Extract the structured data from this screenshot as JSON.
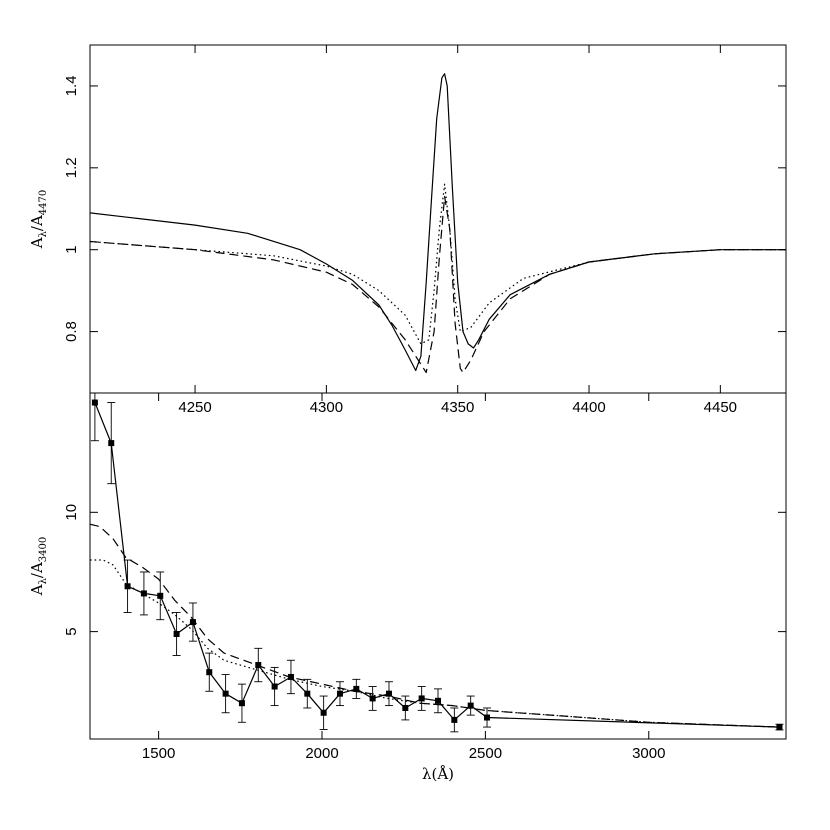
{
  "chart_data": [
    {
      "type": "line",
      "panel": "top",
      "ylabel_main": "A",
      "ylabel_sub1": "λ",
      "ylabel_slash": "/A",
      "ylabel_sub2": "4470",
      "xlim": [
        4210,
        4475
      ],
      "ylim": [
        0.65,
        1.5
      ],
      "grid": false,
      "legend": "none",
      "x_ticks": [
        "4250",
        "4300",
        "4350",
        "4400",
        "4450"
      ],
      "x_tick_values": [
        4250,
        4300,
        4350,
        4400,
        4450
      ],
      "y_ticks": [
        "0.8",
        "1",
        "1.2",
        "1.4"
      ],
      "y_tick_values": [
        0.8,
        1.0,
        1.2,
        1.4
      ],
      "series": [
        {
          "style": "solid",
          "x": [
            4210,
            4230,
            4250,
            4270,
            4290,
            4300,
            4310,
            4320,
            4325,
            4330,
            4334,
            4336,
            4338,
            4340,
            4342,
            4344,
            4345,
            4346,
            4348,
            4350,
            4352,
            4354,
            4356,
            4358,
            4362,
            4370,
            4385,
            4400,
            4425,
            4450,
            4475
          ],
          "y": [
            1.09,
            1.075,
            1.06,
            1.04,
            1.0,
            0.965,
            0.925,
            0.865,
            0.815,
            0.755,
            0.705,
            0.74,
            0.92,
            1.12,
            1.32,
            1.42,
            1.43,
            1.4,
            1.15,
            0.92,
            0.8,
            0.77,
            0.76,
            0.78,
            0.83,
            0.89,
            0.94,
            0.97,
            0.99,
            1.0,
            1.0
          ]
        },
        {
          "style": "dashed",
          "x": [
            4210,
            4250,
            4280,
            4300,
            4310,
            4320,
            4330,
            4334,
            4338,
            4341,
            4343,
            4345,
            4347,
            4349,
            4351,
            4352,
            4355,
            4360,
            4370,
            4385,
            4400,
            4425,
            4450,
            4475
          ],
          "y": [
            1.02,
            1.0,
            0.975,
            0.945,
            0.915,
            0.86,
            0.78,
            0.74,
            0.7,
            0.8,
            0.98,
            1.13,
            1.05,
            0.82,
            0.71,
            0.7,
            0.73,
            0.8,
            0.88,
            0.94,
            0.97,
            0.99,
            1.0,
            1.0
          ]
        },
        {
          "style": "dotted",
          "x": [
            4210,
            4250,
            4280,
            4300,
            4310,
            4320,
            4330,
            4336,
            4339,
            4341,
            4343,
            4345,
            4347,
            4349,
            4351,
            4355,
            4362,
            4375,
            4400,
            4425,
            4450,
            4475
          ],
          "y": [
            1.02,
            1.0,
            0.985,
            0.96,
            0.94,
            0.9,
            0.84,
            0.77,
            0.78,
            0.9,
            1.05,
            1.16,
            1.05,
            0.88,
            0.8,
            0.81,
            0.87,
            0.93,
            0.97,
            0.99,
            1.0,
            1.0
          ]
        }
      ]
    },
    {
      "type": "line",
      "panel": "bottom",
      "ylabel_main": "A",
      "ylabel_sub1": "λ",
      "ylabel_slash": "/A",
      "ylabel_sub2": "3400",
      "xlabel": "λ(Å)",
      "xlim": [
        1290,
        3420
      ],
      "ylim": [
        0.5,
        15.0
      ],
      "grid": false,
      "legend": "none",
      "x_ticks": [
        "1500",
        "2000",
        "2500",
        "3000"
      ],
      "x_tick_values": [
        1500,
        2000,
        2500,
        3000
      ],
      "y_ticks": [
        "5",
        "10"
      ],
      "y_tick_values": [
        5,
        10
      ],
      "series": [
        {
          "style": "solid-markers",
          "x": [
            1305,
            1355,
            1405,
            1455,
            1505,
            1555,
            1605,
            1655,
            1705,
            1755,
            1805,
            1855,
            1905,
            1955,
            2005,
            2055,
            2105,
            2155,
            2205,
            2255,
            2305,
            2355,
            2405,
            2455,
            2505,
            3400
          ],
          "y": [
            14.6,
            12.9,
            6.9,
            6.6,
            6.5,
            4.9,
            5.4,
            3.3,
            2.4,
            2.0,
            3.6,
            2.7,
            3.1,
            2.4,
            1.6,
            2.4,
            2.6,
            2.2,
            2.4,
            1.8,
            2.2,
            2.1,
            1.3,
            1.9,
            1.4,
            1.0
          ],
          "err": [
            1.6,
            1.7,
            1.1,
            0.9,
            1.0,
            0.9,
            0.8,
            0.8,
            0.8,
            0.8,
            0.7,
            0.8,
            0.7,
            0.6,
            0.7,
            0.5,
            0.4,
            0.5,
            0.5,
            0.5,
            0.5,
            0.5,
            0.5,
            0.4,
            0.4,
            0.12
          ]
        },
        {
          "style": "dashed",
          "x": [
            1290,
            1320,
            1360,
            1400,
            1450,
            1500,
            1550,
            1600,
            1650,
            1700,
            1800,
            1900,
            2000,
            2100,
            2200,
            2300,
            2400,
            2500,
            2600,
            2800,
            3000,
            3200,
            3400
          ],
          "y": [
            9.5,
            9.4,
            8.9,
            8.1,
            7.7,
            7.2,
            6.3,
            5.6,
            4.7,
            4.1,
            3.6,
            3.1,
            2.8,
            2.5,
            2.3,
            2.0,
            1.9,
            1.7,
            1.6,
            1.4,
            1.2,
            1.1,
            1.0
          ]
        },
        {
          "style": "dotted",
          "x": [
            1290,
            1330,
            1360,
            1400,
            1450,
            1500,
            1550,
            1600,
            1650,
            1700,
            1800,
            1900,
            2000,
            2100,
            2200,
            2300,
            2400,
            2500,
            2600,
            2800,
            3000,
            3200,
            3400
          ],
          "y": [
            8.0,
            8.0,
            7.8,
            7.0,
            6.6,
            6.2,
            5.7,
            5.1,
            4.3,
            3.8,
            3.4,
            3.0,
            2.7,
            2.5,
            2.2,
            2.0,
            1.9,
            1.7,
            1.6,
            1.4,
            1.2,
            1.1,
            1.0
          ]
        }
      ]
    }
  ]
}
